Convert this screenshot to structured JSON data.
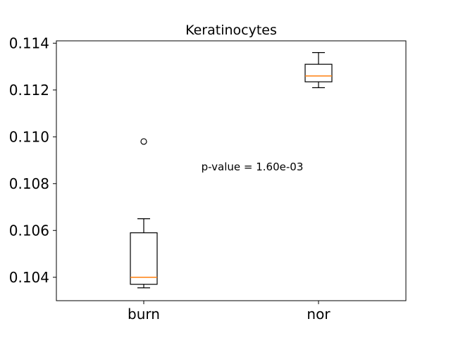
{
  "chart_data": {
    "type": "box",
    "title": "Keratinocytes",
    "xlabel": "",
    "ylabel": "",
    "ylim": [
      0.103,
      0.1141
    ],
    "yticks": [
      0.104,
      0.106,
      0.108,
      0.11,
      0.112,
      0.114
    ],
    "ytick_labels": [
      "0.104",
      "0.106",
      "0.108",
      "0.110",
      "0.112",
      "0.114"
    ],
    "categories": [
      "burn",
      "nor"
    ],
    "boxes": [
      {
        "label": "burn",
        "whisker_low": 0.10355,
        "q1": 0.1037,
        "median": 0.104,
        "q3": 0.1059,
        "whisker_high": 0.1065,
        "fliers": [
          0.1098
        ]
      },
      {
        "label": "nor",
        "whisker_low": 0.1121,
        "q1": 0.11235,
        "median": 0.1126,
        "q3": 0.1131,
        "whisker_high": 0.1136,
        "fliers": []
      }
    ],
    "annotations": [
      {
        "text": "p-value = 1.60e-03"
      }
    ],
    "median_color": "#ff7f0e",
    "box_color": "#000000",
    "grid": false
  }
}
